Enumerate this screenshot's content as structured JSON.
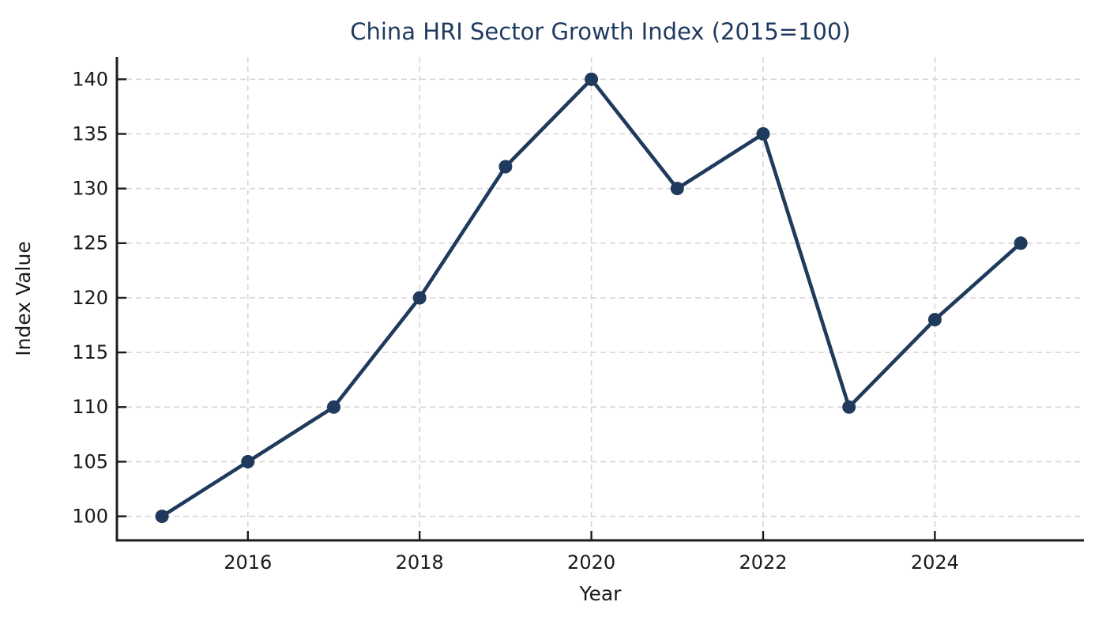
{
  "title": "China HRI Sector Growth Index (2015=100)",
  "chart_data": {
    "type": "line",
    "title": "China HRI Sector Growth Index (2015=100)",
    "xlabel": "Year",
    "ylabel": "Index Value",
    "x": [
      2015,
      2016,
      2017,
      2018,
      2019,
      2020,
      2021,
      2022,
      2023,
      2024,
      2025
    ],
    "series": [
      {
        "name": "China HRI Sector Growth Index",
        "values": [
          100,
          105,
          110,
          120,
          132,
          140,
          130,
          135,
          110,
          118,
          125
        ]
      }
    ],
    "x_tick_labels": [
      "2016",
      "2018",
      "2020",
      "2022",
      "2024"
    ],
    "x_tick_values": [
      2016,
      2018,
      2020,
      2022,
      2024
    ],
    "y_tick_labels": [
      "100",
      "105",
      "110",
      "115",
      "120",
      "125",
      "130",
      "135",
      "140"
    ],
    "y_tick_values": [
      100,
      105,
      110,
      115,
      120,
      125,
      130,
      135,
      140
    ],
    "xlim": [
      2014.475,
      2025.735
    ],
    "ylim": [
      97.8,
      142.05
    ],
    "grid": true,
    "grid_style": "dashed",
    "legend": "none"
  },
  "colors": {
    "line": "#1f3a5c",
    "marker": "#1f3a5c",
    "title_text": "#1f3a5f",
    "tick_text": "#1a1a1a",
    "axis_label_text": "#1a1a1a",
    "grid": "#d6d6d6",
    "spine": "#1c1c1c",
    "background": "#ffffff"
  }
}
